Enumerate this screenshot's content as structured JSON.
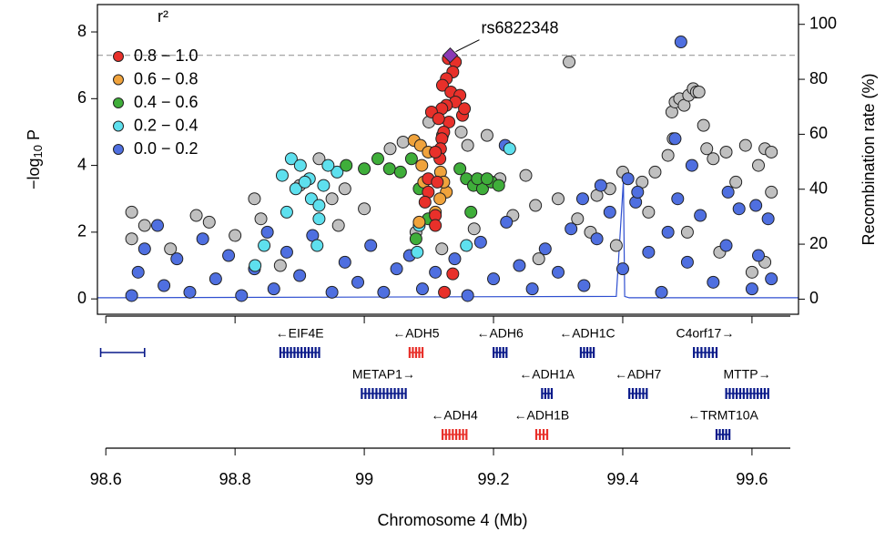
{
  "chart_data": {
    "type": "scatter",
    "ylabel": [
      "−log",
      "10",
      "P"
    ],
    "y2label": "Recombination rate (%)",
    "xlabel": "Chromosome 4 (Mb)",
    "legend_title": "r²",
    "legend": "top-left",
    "xlim": [
      98.587,
      99.672
    ],
    "ylim": [
      -0.46,
      8.82
    ],
    "y2lim": [
      -5.5,
      107.2
    ],
    "xticks": [
      98.6,
      98.8,
      99,
      99.2,
      99.4,
      99.6
    ],
    "yticks": [
      0,
      2,
      4,
      6,
      8
    ],
    "y2ticks": [
      0,
      20,
      40,
      60,
      80,
      100
    ],
    "significance_line": 7.3,
    "annotation": {
      "text": "rs6822348",
      "x": 99.133,
      "y": 7.3
    },
    "series": [
      {
        "color": "#c0c0c0",
        "x": [
          99.317,
          99.476,
          99.481,
          99.488,
          99.495,
          99.502,
          99.509,
          99.514,
          99.518,
          99.478,
          99.47,
          99.525,
          99.53,
          99.54,
          99.56,
          99.59,
          99.62,
          99.63,
          99.61,
          99.575,
          99.45,
          99.43,
          99.4,
          99.38,
          99.36,
          99.15,
          99.16,
          99.19,
          99.1,
          99.06,
          99.04,
          98.93,
          98.9,
          98.95,
          98.97,
          98.83,
          98.74,
          98.64,
          99.21,
          99.3,
          99.265,
          99.25,
          99.35,
          98.64,
          98.66,
          98.7,
          98.76,
          98.8,
          98.84,
          98.87,
          98.96,
          99.0,
          99.08,
          99.12,
          99.17,
          99.23,
          99.27,
          99.33,
          99.39,
          99.44,
          99.5,
          99.55,
          99.6,
          99.63,
          99.62
        ],
        "values": [
          7.1,
          5.6,
          5.9,
          6.0,
          5.8,
          6.1,
          6.3,
          6.2,
          6.2,
          4.8,
          4.3,
          5.2,
          4.5,
          4.2,
          4.4,
          4.6,
          4.5,
          4.4,
          4.0,
          3.5,
          3.8,
          3.5,
          3.8,
          3.3,
          3.1,
          5.0,
          4.6,
          4.9,
          5.3,
          4.7,
          4.5,
          4.2,
          3.4,
          3.0,
          3.3,
          3.0,
          2.5,
          2.6,
          3.6,
          3.0,
          2.8,
          3.7,
          2.0,
          1.8,
          2.2,
          1.5,
          2.3,
          1.9,
          2.4,
          1.0,
          2.2,
          2.7,
          2.0,
          1.5,
          2.1,
          2.5,
          1.2,
          2.4,
          1.6,
          2.6,
          2.0,
          1.4,
          0.8,
          3.2,
          1.1
        ]
      },
      {
        "name": "0.0 − 0.2",
        "color": "#4f6fe0",
        "x": [
          98.64,
          98.65,
          98.66,
          98.68,
          98.69,
          98.71,
          98.73,
          98.75,
          98.77,
          98.79,
          98.81,
          98.83,
          98.85,
          98.86,
          98.88,
          98.9,
          98.92,
          98.95,
          98.97,
          98.99,
          99.01,
          99.03,
          99.05,
          99.07,
          99.09,
          99.11,
          99.14,
          99.16,
          99.18,
          99.2,
          99.22,
          99.24,
          99.26,
          99.28,
          99.3,
          99.32,
          99.34,
          99.36,
          99.38,
          99.4,
          99.42,
          99.44,
          99.46,
          99.47,
          99.5,
          99.52,
          99.54,
          99.56,
          99.58,
          99.6,
          99.61,
          99.625,
          99.63,
          99.49,
          99.218,
          99.481,
          99.507,
          99.408,
          99.423,
          99.366,
          99.338,
          99.485,
          99.563,
          99.606
        ],
        "values": [
          0.1,
          0.8,
          1.5,
          2.2,
          0.4,
          1.2,
          0.2,
          1.8,
          0.6,
          1.3,
          0.1,
          0.9,
          2.0,
          0.3,
          1.4,
          0.7,
          1.9,
          0.2,
          1.1,
          0.5,
          1.6,
          0.2,
          0.9,
          1.3,
          0.3,
          0.8,
          1.2,
          0.1,
          1.7,
          0.6,
          2.3,
          1.0,
          0.3,
          1.5,
          0.8,
          2.1,
          0.4,
          1.8,
          2.6,
          0.9,
          2.9,
          1.4,
          0.2,
          2.0,
          1.1,
          2.5,
          0.5,
          1.6,
          2.7,
          0.3,
          1.3,
          2.4,
          0.6,
          7.7,
          4.6,
          4.8,
          4.0,
          3.6,
          3.2,
          3.4,
          3.0,
          3.0,
          3.2,
          2.8
        ]
      },
      {
        "name": "0.2 − 0.4",
        "color": "#5ee0ee",
        "x": [
          98.887,
          98.901,
          98.873,
          98.915,
          98.937,
          98.958,
          98.944,
          98.918,
          98.894,
          98.908,
          98.88,
          98.93,
          98.831,
          98.845,
          98.927,
          99.225,
          99.082,
          99.158,
          99.085,
          98.93
        ],
        "values": [
          4.2,
          4.0,
          3.7,
          3.6,
          3.4,
          3.8,
          4.0,
          3.0,
          3.3,
          3.5,
          2.6,
          2.4,
          1.0,
          1.6,
          1.6,
          4.5,
          1.4,
          1.6,
          2.2,
          2.8
        ]
      },
      {
        "name": "0.4 − 0.6",
        "color": "#3fae3a",
        "x": [
          99.021,
          99.0,
          99.039,
          99.056,
          99.073,
          99.085,
          99.148,
          99.158,
          99.169,
          99.183,
          99.197,
          99.208,
          99.165,
          99.175,
          99.19,
          99.08,
          99.099,
          98.972
        ],
        "values": [
          4.2,
          3.9,
          3.9,
          3.8,
          4.2,
          3.3,
          3.9,
          3.6,
          3.4,
          3.3,
          3.5,
          3.4,
          2.6,
          3.6,
          3.6,
          1.8,
          2.4,
          4.0
        ]
      },
      {
        "name": "0.6 − 0.8",
        "color": "#f0a33c",
        "x": [
          99.077,
          99.087,
          99.121,
          99.089,
          99.099,
          99.118,
          99.127,
          99.092,
          99.117,
          99.11,
          99.085,
          99.123
        ],
        "values": [
          4.75,
          4.6,
          4.9,
          4.0,
          4.4,
          3.8,
          3.2,
          3.5,
          3.0,
          2.6,
          2.3,
          3.5
        ]
      },
      {
        "name": "0.8 − 1.0",
        "color": "#e8302a",
        "x": [
          99.13,
          99.141,
          99.137,
          99.127,
          99.121,
          99.134,
          99.148,
          99.141,
          99.127,
          99.12,
          99.104,
          99.152,
          99.131,
          99.123,
          99.12,
          99.118,
          99.117,
          99.099,
          99.113,
          99.099,
          99.094,
          99.11,
          99.11,
          99.137,
          99.124,
          99.11,
          99.115,
          99.155
        ],
        "values": [
          7.2,
          7.1,
          6.8,
          6.6,
          6.4,
          6.2,
          6.1,
          5.9,
          5.8,
          5.7,
          5.6,
          5.5,
          5.3,
          5.0,
          4.8,
          4.5,
          4.2,
          3.6,
          3.5,
          3.2,
          2.9,
          2.5,
          2.2,
          0.75,
          0.2,
          4.4,
          5.4,
          5.7
        ]
      },
      {
        "color": "#8b3ab5",
        "shape": "diamond",
        "x": [
          99.133
        ],
        "values": [
          7.3
        ]
      },
      {
        "color": "#2f4fd0",
        "axis": "y2",
        "shape": "line",
        "x": [
          98.587,
          99.39,
          99.401,
          99.403,
          99.41,
          99.672
        ],
        "values": [
          0.5,
          1,
          43,
          1,
          0.5,
          0.5
        ]
      }
    ],
    "gene_rows": [
      [
        {
          "start": 98.592,
          "end": 98.66,
          "color": "#0a1a8a"
        },
        {
          "label": "←EIF4E",
          "start": 98.87,
          "end": 98.93,
          "color": "#0a1a8a"
        },
        {
          "label": "←ADH5",
          "start": 99.07,
          "end": 99.09,
          "color": "#e8302a"
        },
        {
          "label": "←ADH6",
          "start": 99.2,
          "end": 99.22,
          "color": "#0a1a8a"
        },
        {
          "label": "←ADH1C",
          "start": 99.335,
          "end": 99.355,
          "color": "#0a1a8a"
        },
        {
          "label": "C4orf17→",
          "start": 99.51,
          "end": 99.545,
          "color": "#0a1a8a"
        }
      ],
      [
        {
          "label": "METAP1→",
          "start": 98.996,
          "end": 99.064,
          "color": "#0a1a8a"
        },
        {
          "label": "←ADH1A",
          "start": 99.275,
          "end": 99.29,
          "color": "#0a1a8a"
        },
        {
          "label": "←ADH7",
          "start": 99.41,
          "end": 99.437,
          "color": "#0a1a8a"
        },
        {
          "label": "MTTP→",
          "start": 99.56,
          "end": 99.625,
          "color": "#0a1a8a"
        }
      ],
      [
        {
          "label": "←ADH4",
          "start": 99.121,
          "end": 99.158,
          "color": "#e8302a"
        },
        {
          "label": "←ADH1B",
          "start": 99.266,
          "end": 99.283,
          "color": "#e8302a"
        },
        {
          "label": "←TRMT10A",
          "start": 99.545,
          "end": 99.565,
          "color": "#0a1a8a"
        }
      ]
    ]
  }
}
